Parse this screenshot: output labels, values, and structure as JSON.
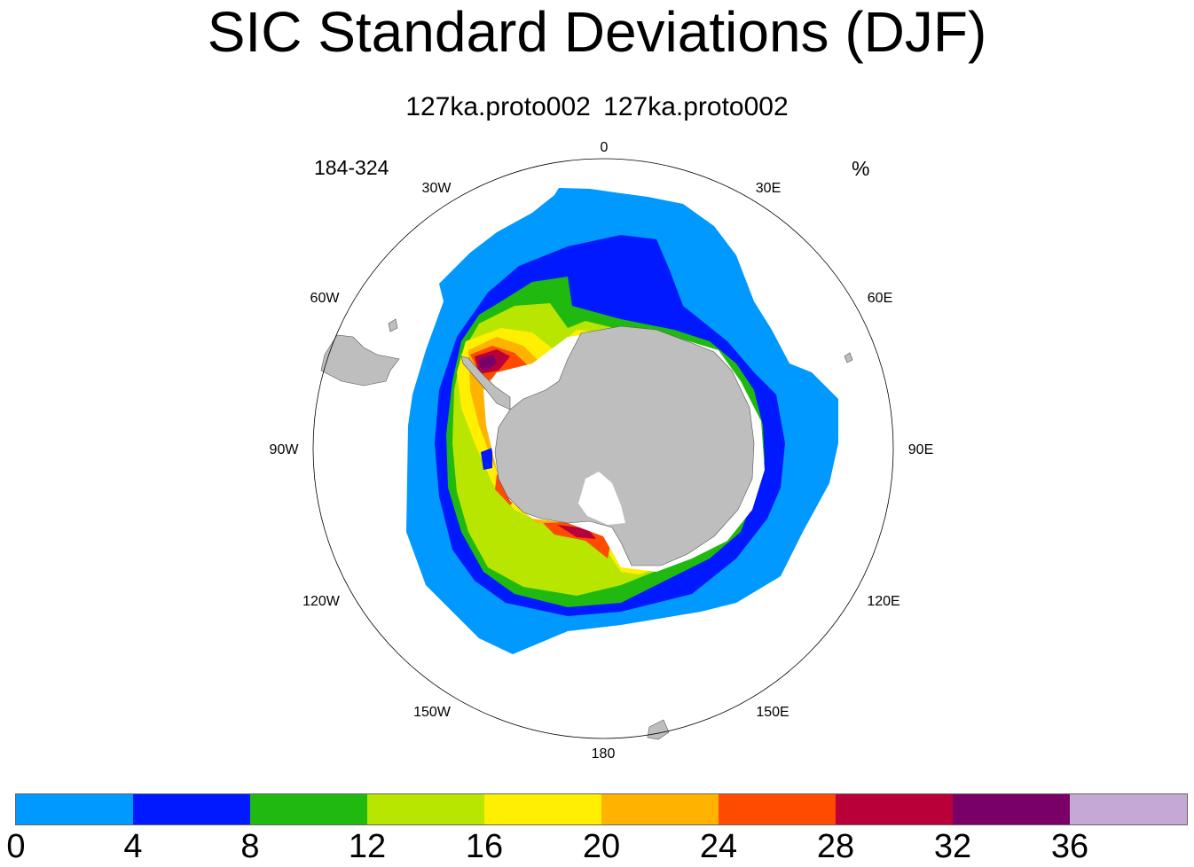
{
  "title": "SIC Standard Deviations (DJF)",
  "subtitle": "127ka.proto002  127ka.proto002",
  "left_label": "184-324",
  "right_label": "%",
  "map": {
    "projection": "south-polar-stereographic",
    "longitude_labels": [
      "0",
      "30E",
      "60E",
      "90E",
      "120E",
      "150E",
      "180",
      "150W",
      "120W",
      "90W",
      "60W",
      "30W"
    ],
    "land_color": "#bebebe",
    "missing_color": "#ffffff"
  },
  "colorbar": {
    "colors": [
      "#0099ff",
      "#0019ff",
      "#20b90f",
      "#b8e600",
      "#ffef00",
      "#ffb300",
      "#ff4b00",
      "#ba0039",
      "#7a0068",
      "#c4a9d4"
    ],
    "tick_labels": [
      "0",
      "4",
      "8",
      "12",
      "16",
      "20",
      "24",
      "28",
      "32",
      "36"
    ]
  }
}
